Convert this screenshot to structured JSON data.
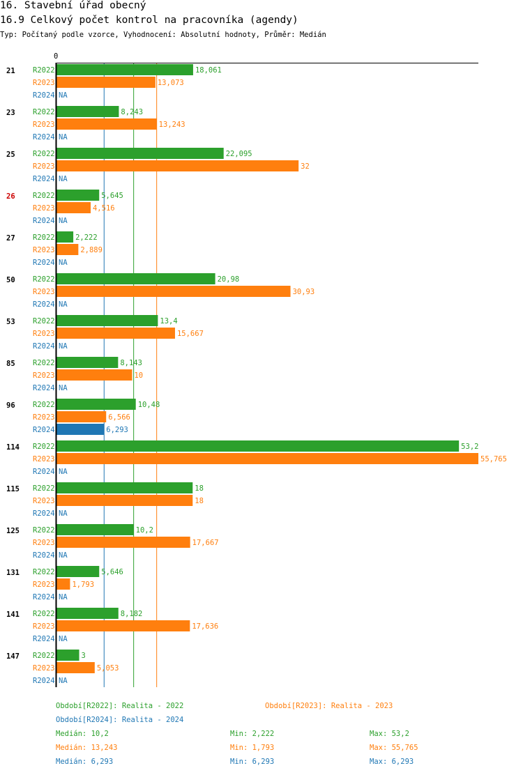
{
  "header": {
    "title": "16. Stavební úřad obecný",
    "subtitle": "16.9 Celkový počet kontrol na pracovníka (agendy)",
    "meta": "Typ: Počítaný podle vzorce, Vyhodnocení: Absolutní hodnoty, Průměr: Medián"
  },
  "colors": {
    "R2022": "#2ca02c",
    "R2023": "#ff7f0e",
    "R2024": "#1f77b4",
    "highlight": "#cc0000"
  },
  "chart_data": {
    "type": "bar",
    "orientation": "horizontal",
    "axis_label_zero": "0",
    "xlim": [
      0,
      55.765
    ],
    "categories": [
      "21",
      "23",
      "25",
      "26",
      "27",
      "50",
      "53",
      "85",
      "96",
      "114",
      "115",
      "125",
      "131",
      "141",
      "147"
    ],
    "highlighted_category": "26",
    "series": [
      {
        "name": "R2022",
        "values": [
          18.061,
          8.243,
          22.095,
          5.645,
          2.222,
          20.98,
          13.4,
          8.143,
          10.48,
          53.2,
          18,
          10.2,
          5.646,
          8.182,
          3
        ],
        "labels": [
          "18,061",
          "8,243",
          "22,095",
          "5,645",
          "2,222",
          "20,98",
          "13,4",
          "8,143",
          "10,48",
          "53,2",
          "18",
          "10,2",
          "5,646",
          "8,182",
          "3"
        ]
      },
      {
        "name": "R2023",
        "values": [
          13.073,
          13.243,
          32,
          4.516,
          2.889,
          30.93,
          15.667,
          10,
          6.566,
          55.765,
          18,
          17.667,
          1.793,
          17.636,
          5.053
        ],
        "labels": [
          "13,073",
          "13,243",
          "32",
          "4,516",
          "2,889",
          "30,93",
          "15,667",
          "10",
          "6,566",
          "55,765",
          "18",
          "17,667",
          "1,793",
          "17,636",
          "5,053"
        ]
      },
      {
        "name": "R2024",
        "values": [
          null,
          null,
          null,
          null,
          null,
          null,
          null,
          null,
          6.293,
          null,
          null,
          null,
          null,
          null,
          null
        ],
        "labels": [
          "NA",
          "NA",
          "NA",
          "NA",
          "NA",
          "NA",
          "NA",
          "NA",
          "6,293",
          "NA",
          "NA",
          "NA",
          "NA",
          "NA",
          "NA"
        ]
      }
    ],
    "median_lines": {
      "R2022": 10.2,
      "R2023": 13.243,
      "R2024": 6.293
    }
  },
  "legend": {
    "periods": [
      {
        "key": "R2022",
        "text": "Období[R2022]: Realita - 2022"
      },
      {
        "key": "R2023",
        "text": "Období[R2023]: Realita - 2023"
      },
      {
        "key": "R2024",
        "text": "Období[R2024]: Realita - 2024"
      }
    ],
    "stats": [
      {
        "key": "R2022",
        "median": "Medián: 10,2",
        "min": "Min: 2,222",
        "max": "Max: 53,2"
      },
      {
        "key": "R2023",
        "median": "Medián: 13,243",
        "min": "Min: 1,793",
        "max": "Max: 55,765"
      },
      {
        "key": "R2024",
        "median": "Medián: 6,293",
        "min": "Min: 6,293",
        "max": "Max: 6,293"
      }
    ]
  }
}
